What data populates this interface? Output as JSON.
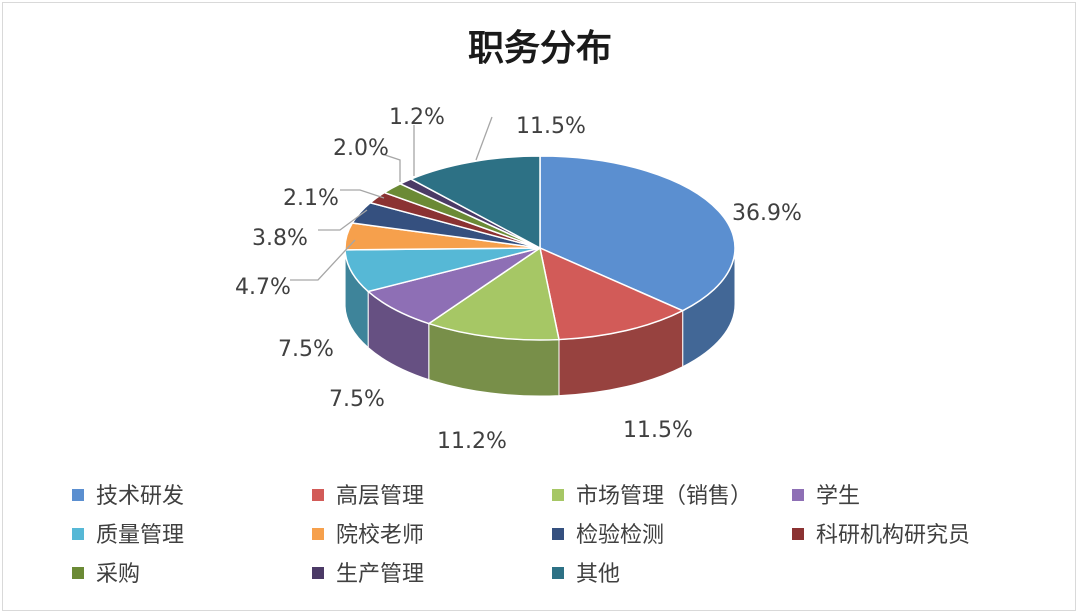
{
  "chart_data": {
    "type": "pie",
    "title": "职务分布",
    "categories": [
      "技术研发",
      "高层管理",
      "市场管理（销售）",
      "学生",
      "质量管理",
      "院校老师",
      "检验检测",
      "科研机构研究员",
      "采购",
      "生产管理",
      "其他"
    ],
    "values": [
      36.9,
      11.5,
      11.2,
      7.5,
      7.5,
      4.7,
      3.8,
      2.1,
      2.0,
      1.2,
      11.5
    ],
    "labels": [
      "36.9%",
      "11.5%",
      "11.2%",
      "7.5%",
      "7.5%",
      "4.7%",
      "3.8%",
      "2.1%",
      "2.0%",
      "1.2%",
      "11.5%"
    ],
    "colors": [
      "#5b8fd0",
      "#d25b58",
      "#a6c765",
      "#8e6fb5",
      "#56b8d6",
      "#f6a04c",
      "#35507f",
      "#8b3232",
      "#6b8a35",
      "#4b3a66",
      "#2d7185"
    ],
    "legend_position": "bottom",
    "style": "3d"
  }
}
